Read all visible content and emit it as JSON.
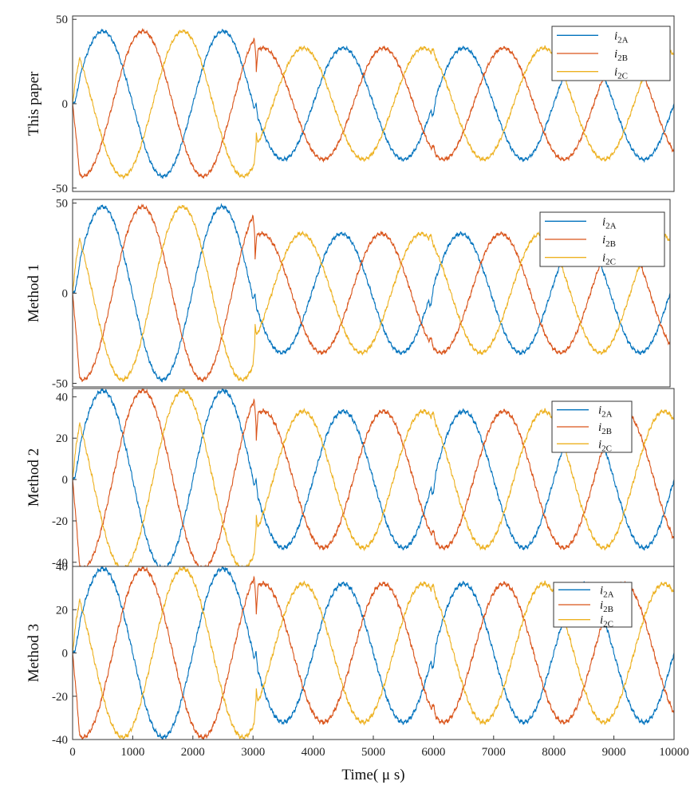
{
  "chart_data": [
    {
      "type": "line",
      "ylabel": "This paper",
      "yticks": [
        50,
        0,
        -50
      ],
      "ylim": [
        -52,
        52
      ],
      "xlim": [
        0,
        10000
      ],
      "series": [
        {
          "name": "i2A",
          "color": "#0072BD"
        },
        {
          "name": "i2B",
          "color": "#D95319"
        },
        {
          "name": "i2C",
          "color": "#EDB120"
        }
      ],
      "segments": [
        {
          "t_start": 0,
          "t_end": 3050,
          "amplitude": 43
        },
        {
          "t_start": 3050,
          "t_end": 10000,
          "amplitude": 33
        }
      ],
      "period_us": 2000,
      "events_us": [
        3050,
        6000
      ]
    },
    {
      "type": "line",
      "ylabel": "Method 1",
      "yticks": [
        50,
        0,
        -50
      ],
      "ylim": [
        -52,
        52
      ],
      "xlim": [
        0,
        10000
      ],
      "series": [
        {
          "name": "i2A",
          "color": "#0072BD"
        },
        {
          "name": "i2B",
          "color": "#D95319"
        },
        {
          "name": "i2C",
          "color": "#EDB120"
        }
      ],
      "segments": [
        {
          "t_start": 0,
          "t_end": 3050,
          "amplitude": 48
        },
        {
          "t_start": 3050,
          "t_end": 10000,
          "amplitude": 33
        }
      ],
      "period_us": 2000,
      "events_us": [
        3050,
        6000
      ]
    },
    {
      "type": "line",
      "ylabel": "Method 2",
      "yticks": [
        40,
        20,
        0,
        -20,
        -40
      ],
      "ylim": [
        -42,
        44
      ],
      "xlim": [
        0,
        10000
      ],
      "series": [
        {
          "name": "i2A",
          "color": "#0072BD"
        },
        {
          "name": "i2B",
          "color": "#D95319"
        },
        {
          "name": "i2C",
          "color": "#EDB120"
        }
      ],
      "segments": [
        {
          "t_start": 0,
          "t_end": 3050,
          "amplitude": 43
        },
        {
          "t_start": 3050,
          "t_end": 10000,
          "amplitude": 33
        }
      ],
      "period_us": 2000,
      "events_us": [
        3050,
        6000
      ]
    },
    {
      "type": "line",
      "ylabel": "Method 3",
      "yticks": [
        40,
        20,
        0,
        -20,
        -40
      ],
      "ylim": [
        -40,
        40
      ],
      "xlim": [
        0,
        10000
      ],
      "xticks": [
        0,
        1000,
        2000,
        3000,
        4000,
        5000,
        6000,
        7000,
        8000,
        9000,
        10000
      ],
      "xlabel": "Time( μ s)",
      "series": [
        {
          "name": "i2A",
          "color": "#0072BD"
        },
        {
          "name": "i2B",
          "color": "#D95319"
        },
        {
          "name": "i2C",
          "color": "#EDB120"
        }
      ],
      "segments": [
        {
          "t_start": 0,
          "t_end": 3050,
          "amplitude": 39
        },
        {
          "t_start": 3050,
          "t_end": 10000,
          "amplitude": 32
        }
      ],
      "period_us": 2000,
      "events_us": [
        3050,
        6000
      ]
    }
  ]
}
